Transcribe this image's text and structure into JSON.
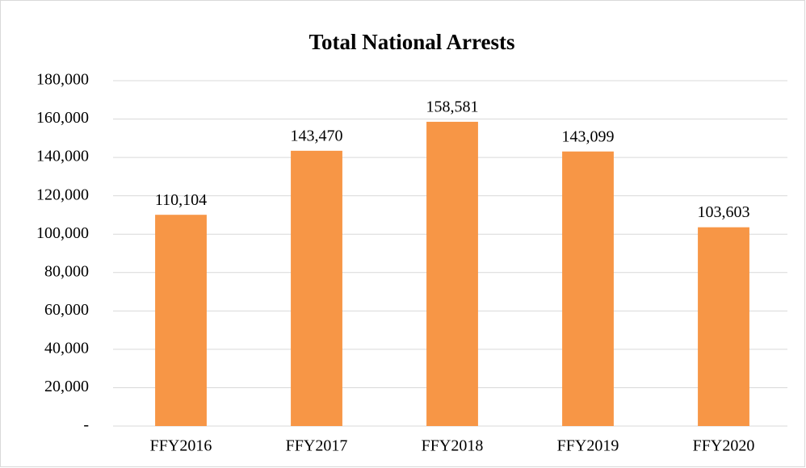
{
  "chart_data": {
    "type": "bar",
    "title": "Total National Arrests",
    "categories": [
      "FFY2016",
      "FFY2017",
      "FFY2018",
      "FFY2019",
      "FFY2020"
    ],
    "values": [
      110104,
      143470,
      158581,
      143099,
      103603
    ],
    "value_labels": [
      "110,104",
      "143,470",
      "158,581",
      "143,099",
      "103,603"
    ],
    "color": "#f79646",
    "ylim": [
      0,
      180000
    ],
    "yticks": [
      {
        "value": 0,
        "label": "-"
      },
      {
        "value": 20000,
        "label": "20,000"
      },
      {
        "value": 40000,
        "label": "40,000"
      },
      {
        "value": 60000,
        "label": "60,000"
      },
      {
        "value": 80000,
        "label": "80,000"
      },
      {
        "value": 100000,
        "label": "100,000"
      },
      {
        "value": 120000,
        "label": "120,000"
      },
      {
        "value": 140000,
        "label": "140,000"
      },
      {
        "value": 160000,
        "label": "160,000"
      },
      {
        "value": 180000,
        "label": "180,000"
      }
    ],
    "grid": true
  }
}
